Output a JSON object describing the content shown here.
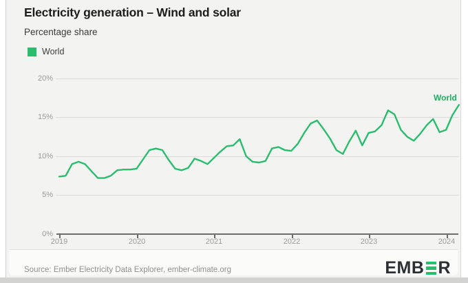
{
  "header": {
    "title": "Electricity generation – Wind and solar",
    "subtitle": "Percentage share"
  },
  "legend": {
    "label": "World",
    "color": "#2abd6e"
  },
  "annotation": {
    "series_label": "World",
    "color": "#1fae63"
  },
  "footer": {
    "source": "Source: Ember Electricity Data Explorer, ember-climate.org",
    "logo_left": "EMB",
    "logo_right": "R",
    "logo_accent": "#2abd6e",
    "logo_text_color": "#2b2f33"
  },
  "chart_data": {
    "type": "line",
    "title": "Electricity generation – Wind and solar",
    "subtitle": "Percentage share",
    "xlabel": "",
    "ylabel": "Percentage share",
    "unit": "%",
    "ylim": [
      0,
      20
    ],
    "yticks": [
      "0%",
      "5%",
      "10%",
      "15%",
      "20%"
    ],
    "xticks": [
      "2019",
      "2020",
      "2021",
      "2022",
      "2023",
      "2024"
    ],
    "grid": "horizontal-only",
    "legend_position": "top-left",
    "line_color": "#2abd6e",
    "series": [
      {
        "name": "World",
        "color": "#2abd6e",
        "frequency": "monthly",
        "x_start": "2019-01",
        "x_end": "2024-03",
        "values": [
          7.4,
          7.5,
          9.0,
          9.3,
          9.0,
          8.1,
          7.2,
          7.2,
          7.5,
          8.2,
          8.3,
          8.3,
          8.4,
          9.6,
          10.8,
          11.0,
          10.8,
          9.5,
          8.4,
          8.2,
          8.5,
          9.7,
          9.4,
          9.0,
          9.8,
          10.6,
          11.3,
          11.4,
          12.2,
          10.0,
          9.3,
          9.2,
          9.4,
          11.0,
          11.2,
          10.8,
          10.7,
          11.6,
          13.0,
          14.2,
          14.6,
          13.5,
          12.3,
          10.8,
          10.3,
          11.9,
          13.3,
          11.4,
          13.0,
          13.2,
          14.0,
          15.9,
          15.4,
          13.4,
          12.5,
          12.0,
          12.9,
          14.0,
          14.8,
          13.1,
          13.4,
          15.3,
          16.6
        ]
      }
    ]
  }
}
